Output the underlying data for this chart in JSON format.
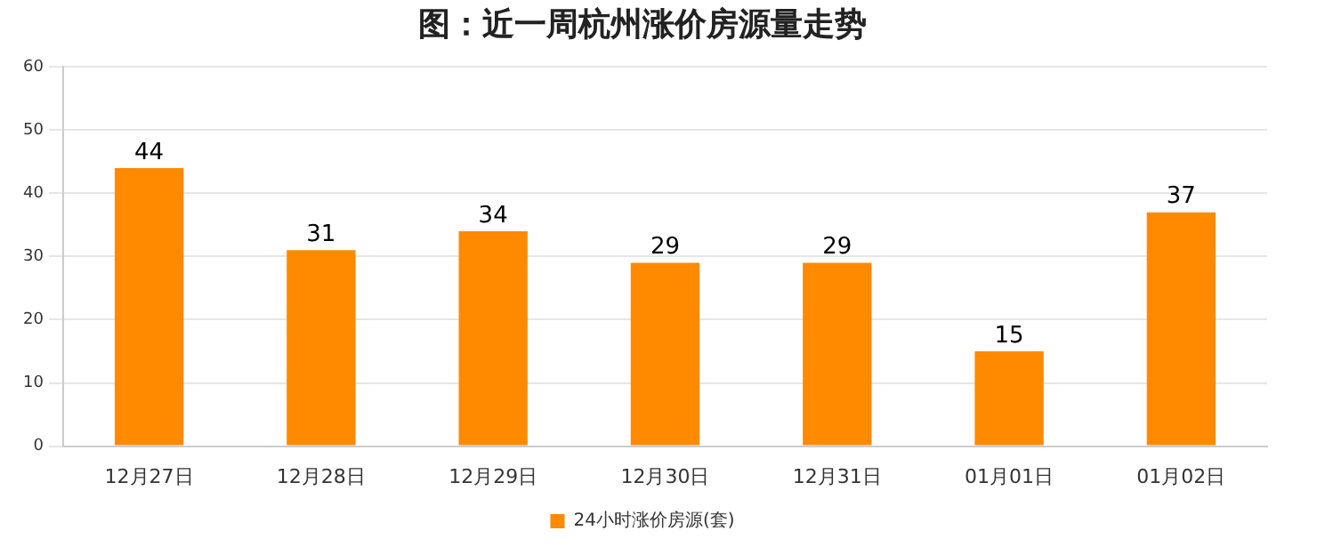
{
  "chart_data": {
    "type": "bar",
    "title": "图：近一周杭州涨价房源量走势",
    "categories": [
      "12月27日",
      "12月28日",
      "12月29日",
      "12月30日",
      "12月31日",
      "01月01日",
      "01月02日"
    ],
    "series": [
      {
        "name": "24小时涨价房源(套)",
        "color": "#ff8a00",
        "values": [
          44,
          31,
          34,
          29,
          29,
          15,
          37
        ]
      }
    ],
    "ylim": [
      0,
      60
    ],
    "yticks": [
      0,
      10,
      20,
      30,
      40,
      50,
      60
    ],
    "grid": "y",
    "legend": "bottom",
    "data_labels": true
  }
}
